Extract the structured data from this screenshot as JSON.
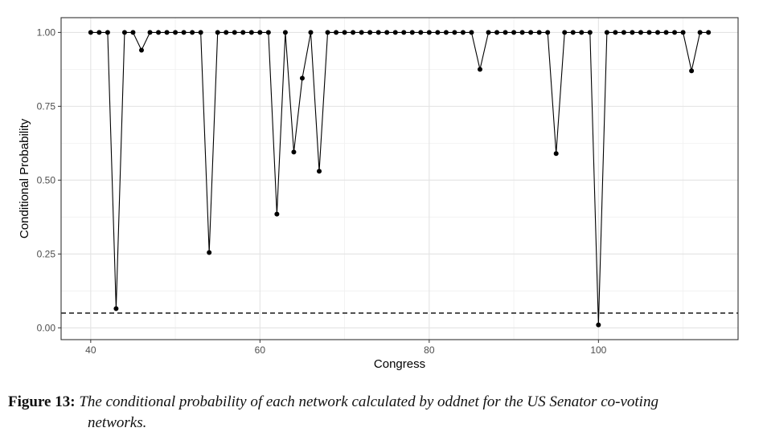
{
  "chart_data": {
    "type": "line",
    "xlabel": "Congress",
    "ylabel": "Conditional Probability",
    "xlim": [
      36.5,
      116.5
    ],
    "ylim": [
      -0.04,
      1.05
    ],
    "x_ticks": [
      40,
      60,
      80,
      100
    ],
    "x_tick_labels": [
      "40",
      "60",
      "80",
      "100"
    ],
    "y_ticks": [
      0,
      0.25,
      0.5,
      0.75,
      1.0
    ],
    "y_tick_labels": [
      "0.00",
      "0.25",
      "0.50",
      "0.75",
      "1.00"
    ],
    "grid": true,
    "legend": "none",
    "reference_line": {
      "y": 0.05,
      "style": "dashed"
    },
    "series": [
      {
        "x": [
          40,
          41,
          42,
          43,
          44,
          45,
          46,
          47,
          48,
          49,
          50,
          51,
          52,
          53,
          54,
          55,
          56,
          57,
          58,
          59,
          60,
          61,
          62,
          63,
          64,
          65,
          66,
          67,
          68,
          69,
          70,
          71,
          72,
          73,
          74,
          75,
          76,
          77,
          78,
          79,
          80,
          81,
          82,
          83,
          84,
          85,
          86,
          87,
          88,
          89,
          90,
          91,
          92,
          93,
          94,
          95,
          96,
          97,
          98,
          99,
          100,
          101,
          102,
          103,
          104,
          105,
          106,
          107,
          108,
          109,
          110,
          111,
          112,
          113
        ],
        "values": [
          1,
          1,
          1,
          0.065,
          1,
          1,
          0.94,
          1,
          1,
          1,
          1,
          1,
          1,
          1,
          0.255,
          1,
          1,
          1,
          1,
          1,
          1,
          1,
          0.385,
          1,
          0.595,
          0.845,
          1,
          0.53,
          1,
          1,
          1,
          1,
          1,
          1,
          1,
          1,
          1,
          1,
          1,
          1,
          1,
          1,
          1,
          1,
          1,
          1,
          0.875,
          1,
          1,
          1,
          1,
          1,
          1,
          1,
          1,
          0.59,
          1,
          1,
          1,
          1,
          0.01,
          1,
          1,
          1,
          1,
          1,
          1,
          1,
          1,
          1,
          1,
          0.87,
          1,
          1
        ]
      }
    ]
  },
  "caption": {
    "label": "Figure 13:",
    "text_line1": "The conditional probability of each network calculated by oddnet for the US Senator co-voting",
    "text_line2": "networks."
  }
}
